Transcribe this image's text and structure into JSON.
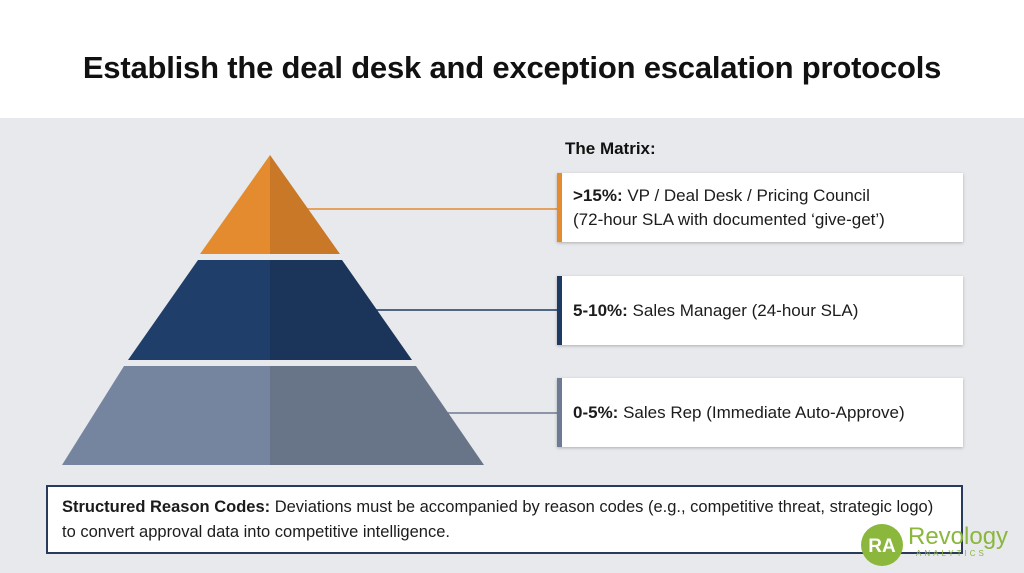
{
  "title": "Establish the deal desk and exception escalation protocols",
  "matrix": {
    "heading": "The Matrix:",
    "tiers": [
      {
        "bold": ">15%:",
        "line1": " VP / Deal Desk / Pricing Council",
        "line2": "(72-hour SLA with documented ‘give-get’)",
        "color": "#e38b2e"
      },
      {
        "bold": "5-10%:",
        "line1": " Sales Manager (24-hour SLA)",
        "line2": "",
        "color": "#1d3a63"
      },
      {
        "bold": "0-5%:",
        "line1": " Sales Rep (Immediate Auto-Approve)",
        "line2": "",
        "color": "#6d7b92"
      }
    ]
  },
  "reason_codes": {
    "label": "Structured Reason Codes:",
    "text": " Deviations must be accompanied by reason codes (e.g., competitive threat, strategic logo) to convert approval data into competitive intelligence."
  },
  "logo": {
    "monogram": "RA",
    "name": "Revology",
    "sub": "ANALYTICS",
    "color": "#8ab73c"
  }
}
